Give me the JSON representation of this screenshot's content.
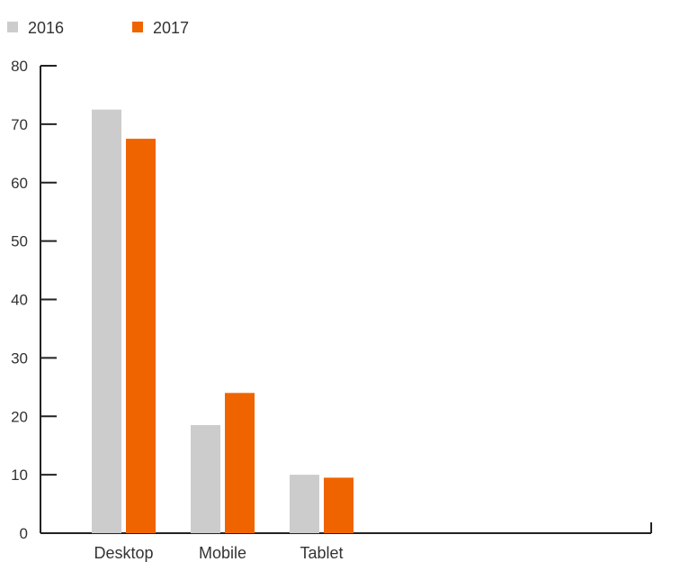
{
  "chart_data": {
    "type": "bar",
    "categories": [
      "Desktop",
      "Mobile",
      "Tablet"
    ],
    "series": [
      {
        "name": "2016",
        "values": [
          72.5,
          18.5,
          10
        ],
        "color": "#cccccc"
      },
      {
        "name": "2017",
        "values": [
          67.5,
          24,
          9.5
        ],
        "color": "#f06400"
      }
    ],
    "ylim": [
      0,
      80
    ],
    "yticks": [
      0,
      10,
      20,
      30,
      40,
      50,
      60,
      70,
      80
    ],
    "grid": false,
    "legend_position": "top-left",
    "title": "",
    "xlabel": "",
    "ylabel": ""
  }
}
